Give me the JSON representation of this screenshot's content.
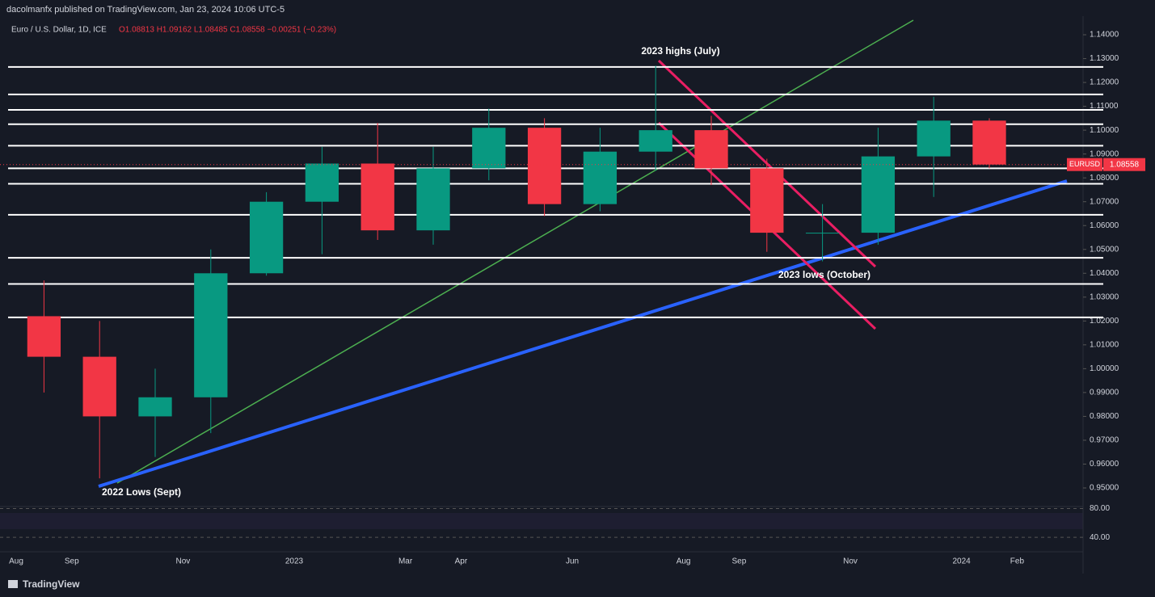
{
  "chart_data": {
    "type": "candlestick",
    "publisher": "dacolmanfx published on TradingView.com, Jan 23, 2024 10:06 UTC-5",
    "title": "Euro / U.S. Dollar, 1D, ICE",
    "ohlc_text": "O1.08813 H1.09162 L1.08485 C1.08558 −0.00251 (−0.23%)",
    "symbol": "EURUSD",
    "last_price": {
      "value": 1.08558,
      "label": "1.08558"
    },
    "categories": [
      "Aug",
      "Sep",
      null,
      "Nov",
      null,
      "2023",
      null,
      "Mar",
      "Apr",
      null,
      "Jun",
      null,
      "Aug",
      "Sep",
      null,
      "Nov",
      null,
      "2024",
      "Feb"
    ],
    "open": [
      1.022,
      1.005,
      0.98,
      0.988,
      1.04,
      1.07,
      1.086,
      1.058,
      1.084,
      1.101,
      1.069,
      1.091,
      1.1,
      1.084,
      1.057,
      1.057,
      1.089,
      1.104,
      null
    ],
    "high": [
      1.037,
      1.02,
      1.0,
      1.05,
      1.074,
      1.093,
      1.103,
      1.093,
      1.109,
      1.105,
      1.101,
      1.127,
      1.106,
      1.088,
      1.069,
      1.101,
      1.114,
      1.105,
      null
    ],
    "low": [
      0.99,
      0.954,
      0.963,
      0.973,
      1.039,
      1.048,
      1.054,
      1.052,
      1.079,
      1.064,
      1.066,
      1.083,
      1.077,
      1.049,
      1.045,
      1.052,
      1.072,
      1.084,
      null
    ],
    "close": [
      1.005,
      0.98,
      0.988,
      1.04,
      1.07,
      1.086,
      1.058,
      1.084,
      1.101,
      1.069,
      1.091,
      1.1,
      1.084,
      1.057,
      1.057,
      1.089,
      1.104,
      1.08558,
      null
    ],
    "up_color": "#089981",
    "down_color": "#f23645",
    "ylim": [
      0.9439,
      1.1478
    ],
    "yticks": [
      {
        "value": 0.95,
        "label": "0.95000"
      },
      {
        "value": 0.96,
        "label": "0.96000"
      },
      {
        "value": 0.97,
        "label": "0.97000"
      },
      {
        "value": 0.98,
        "label": "0.98000"
      },
      {
        "value": 0.99,
        "label": "0.99000"
      },
      {
        "value": 1.0,
        "label": "1.00000"
      },
      {
        "value": 1.01,
        "label": "1.01000"
      },
      {
        "value": 1.02,
        "label": "1.02000"
      },
      {
        "value": 1.03,
        "label": "1.03000"
      },
      {
        "value": 1.04,
        "label": "1.04000"
      },
      {
        "value": 1.05,
        "label": "1.05000"
      },
      {
        "value": 1.06,
        "label": "1.06000"
      },
      {
        "value": 1.07,
        "label": "1.07000"
      },
      {
        "value": 1.08,
        "label": "1.08000"
      },
      {
        "value": 1.09,
        "label": "1.09000"
      },
      {
        "value": 1.1,
        "label": "1.10000"
      },
      {
        "value": 1.11,
        "label": "1.11000"
      },
      {
        "value": 1.12,
        "label": "1.12000"
      },
      {
        "value": 1.13,
        "label": "1.13000"
      },
      {
        "value": 1.14,
        "label": "1.14000"
      }
    ],
    "levels": [
      1.1265,
      1.115,
      1.1085,
      1.1025,
      1.0935,
      1.084,
      1.0775,
      1.0645,
      1.0465,
      1.0355,
      1.0215
    ],
    "annotations": [
      "2023 highs (July)",
      "2023 lows (October)",
      "2022 Lows (Sept)"
    ],
    "rsi": {
      "ylim": [
        20,
        85
      ],
      "yticks": [
        {
          "value": 80,
          "label": "80.00"
        },
        {
          "value": 40,
          "label": "40.00"
        }
      ]
    },
    "footer": "TradingView"
  }
}
